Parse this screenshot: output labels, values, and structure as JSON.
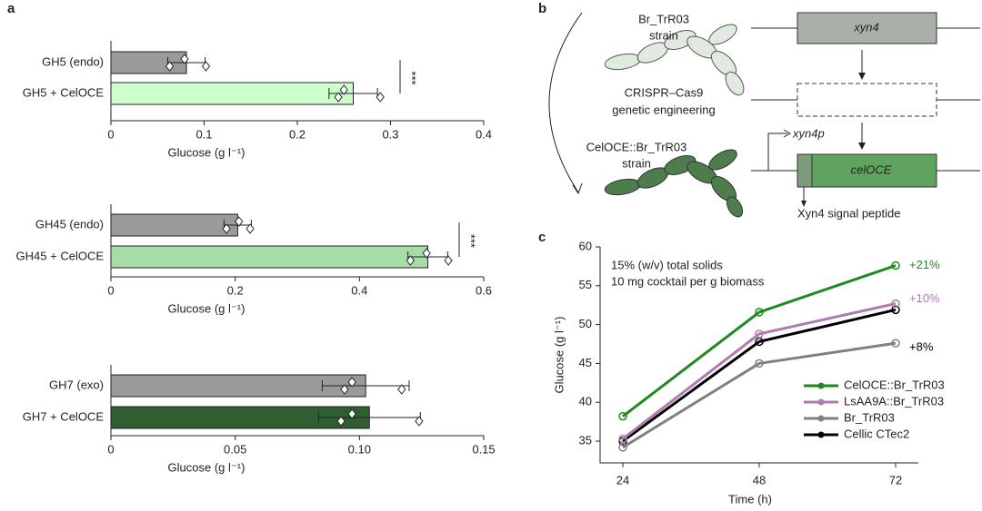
{
  "chart_data": [
    {
      "type": "hbar",
      "panel": "a",
      "categories": [
        "GH5 (endo)",
        "GH5 + CelOCE"
      ],
      "values": [
        0.081,
        0.26
      ],
      "errors": [
        0.02,
        0.026
      ],
      "points": [
        [
          0.063,
          0.079,
          0.102
        ],
        [
          0.244,
          0.25,
          0.289
        ]
      ],
      "colors": [
        "#9a9a9a",
        "#ccffcc"
      ],
      "xlim": [
        0,
        0.4
      ],
      "xticks": [
        0,
        0.1,
        0.2,
        0.3,
        0.4
      ],
      "xlabel": "Glucose (g l⁻¹)",
      "annotation": "***"
    },
    {
      "type": "hbar",
      "categories": [
        "GH45 (endo)",
        "GH45 + CelOCE"
      ],
      "values": [
        0.204,
        0.51
      ],
      "errors": [
        0.022,
        0.032
      ],
      "points": [
        [
          0.186,
          0.206,
          0.224
        ],
        [
          0.482,
          0.508,
          0.543
        ]
      ],
      "colors": [
        "#9a9a9a",
        "#a6dca6"
      ],
      "xlim": [
        0,
        0.6
      ],
      "xticks": [
        0,
        0.2,
        0.4,
        0.6
      ],
      "xlabel": "Glucose (g l⁻¹)",
      "annotation": "***"
    },
    {
      "type": "hbar",
      "categories": [
        "GH7 (exo)",
        "GH7 + CelOCE"
      ],
      "values": [
        0.1025,
        0.104
      ],
      "errors": [
        0.0175,
        0.0205
      ],
      "points": [
        [
          0.094,
          0.097,
          0.117
        ],
        [
          0.0926,
          0.097,
          0.124
        ]
      ],
      "colors": [
        "#9a9a9a",
        "#2f5e30"
      ],
      "xlim": [
        0,
        0.15
      ],
      "xticks": [
        0,
        0.05,
        {
          "value": 0.1,
          "label": "0.10"
        },
        0.15
      ],
      "xlabel": "Glucose (g l⁻¹)"
    },
    {
      "type": "line",
      "panel": "c",
      "x": [
        24,
        48,
        72
      ],
      "xlim": [
        20,
        76
      ],
      "xticks": [
        24,
        48,
        72
      ],
      "ylim": [
        32.2,
        60
      ],
      "yticks": [
        35,
        40,
        45,
        50,
        55,
        60
      ],
      "xlabel": "Time (h)",
      "ylabel": "Glucose (g l⁻¹)",
      "notes": [
        "15% (w/v) total solids",
        "10 mg cocktail per g biomass"
      ],
      "series": [
        {
          "name": "CelOCE::Br_TrR03",
          "color": "#1e8a1e",
          "values": [
            38.2,
            51.6,
            57.6
          ]
        },
        {
          "name": "LsAA9A::Br_TrR03",
          "color": "#b07ab0",
          "values": [
            35.3,
            48.8,
            52.7
          ]
        },
        {
          "name": "Br_TrR03",
          "color": "#808080",
          "values": [
            34.2,
            45.0,
            47.6
          ]
        },
        {
          "name": "Cellic CTec2",
          "color": "#000000",
          "values": [
            35.0,
            47.8,
            51.9
          ]
        }
      ],
      "annotations": [
        {
          "text": "+21%",
          "color": "#1e8a1e"
        },
        {
          "text": "+10%",
          "color": "#b07ab0"
        },
        {
          "text": "+8%",
          "color": "#000000"
        }
      ]
    }
  ],
  "diagram": {
    "panel": "b",
    "parent_strain": [
      "Br_TrR03",
      "strain"
    ],
    "method": [
      "CRISPR–Cas9",
      "genetic engineering"
    ],
    "engineered_strain": [
      "CelOCE::Br_TrR03",
      "strain"
    ],
    "gene_original": "xyn4",
    "promoter": "xyn4p",
    "gene_new": "celOCE",
    "signal": "Xyn4 signal peptide"
  }
}
